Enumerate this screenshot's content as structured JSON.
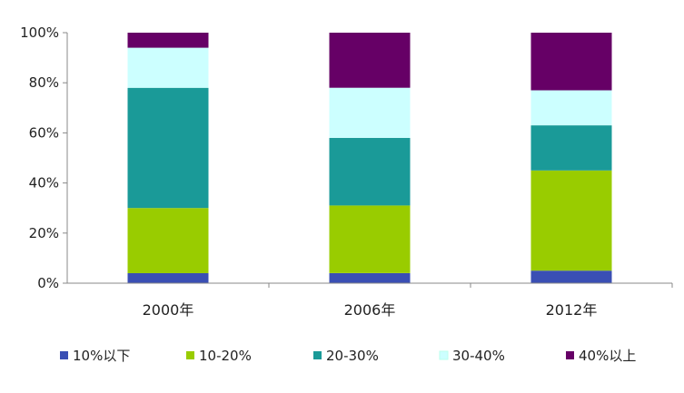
{
  "chart_data": {
    "type": "bar",
    "stacked": true,
    "categories": [
      "2000年",
      "2006年",
      "2012年"
    ],
    "series": [
      {
        "name": "10%以下",
        "color": "#3a4fb4",
        "values": [
          4,
          4,
          5
        ]
      },
      {
        "name": "10-20%",
        "color": "#99cc00",
        "values": [
          26,
          27,
          40
        ]
      },
      {
        "name": "20-30%",
        "color": "#1a9a98",
        "values": [
          48,
          27,
          18
        ]
      },
      {
        "name": "30-40%",
        "color": "#ccffff",
        "values": [
          16,
          20,
          14
        ]
      },
      {
        "name": "40%以上",
        "color": "#660066",
        "values": [
          6,
          22,
          23
        ]
      }
    ],
    "y_ticks": [
      "0%",
      "20%",
      "40%",
      "60%",
      "80%",
      "100%"
    ],
    "ylim": [
      0,
      100
    ],
    "legend": "bottom",
    "grid": false,
    "title": "",
    "xlabel": "",
    "ylabel": ""
  }
}
